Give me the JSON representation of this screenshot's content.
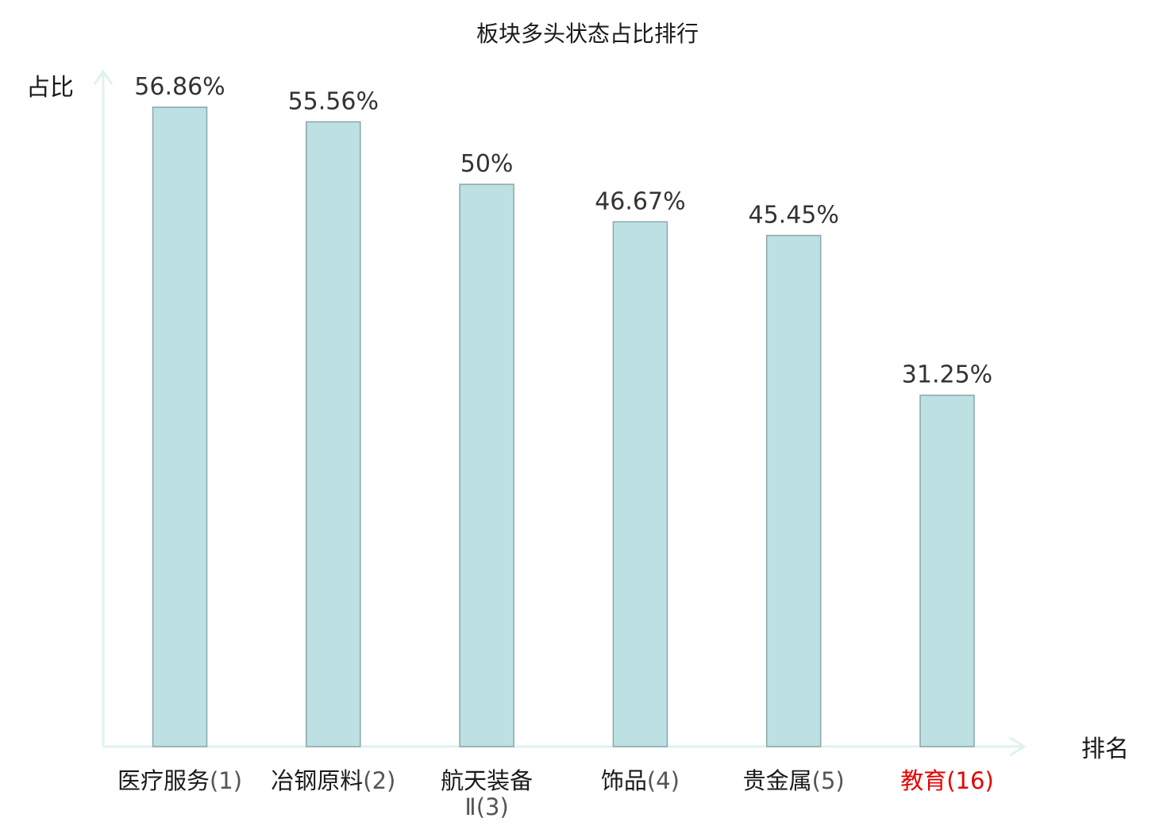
{
  "chart_data": {
    "type": "bar",
    "title": "板块多头状态占比排行",
    "ylabel": "占比",
    "xlabel": "排名",
    "ylim": [
      0,
      60
    ],
    "grid": false,
    "legend": "none",
    "categories": [
      {
        "name": "医疗服务",
        "rank": "(1)",
        "highlight": false
      },
      {
        "name": "冶钢原料",
        "rank": "(2)",
        "highlight": false
      },
      {
        "name": "航天装备",
        "name_line2": "Ⅱ",
        "rank": "(3)",
        "highlight": false
      },
      {
        "name": "饰品",
        "rank": "(4)",
        "highlight": false
      },
      {
        "name": "贵金属",
        "rank": "(5)",
        "highlight": false
      },
      {
        "name": "教育",
        "rank": "(16)",
        "highlight": true
      }
    ],
    "values": [
      56.86,
      55.56,
      50,
      46.67,
      45.45,
      31.25
    ],
    "value_labels": [
      "56.86%",
      "55.56%",
      "50%",
      "46.67%",
      "45.45%",
      "31.25%"
    ]
  },
  "colors": {
    "bar_fill": "#bde0e3",
    "bar_stroke": "#8aa6aa",
    "axis": "#dff2ef",
    "highlight": "#e60000"
  }
}
